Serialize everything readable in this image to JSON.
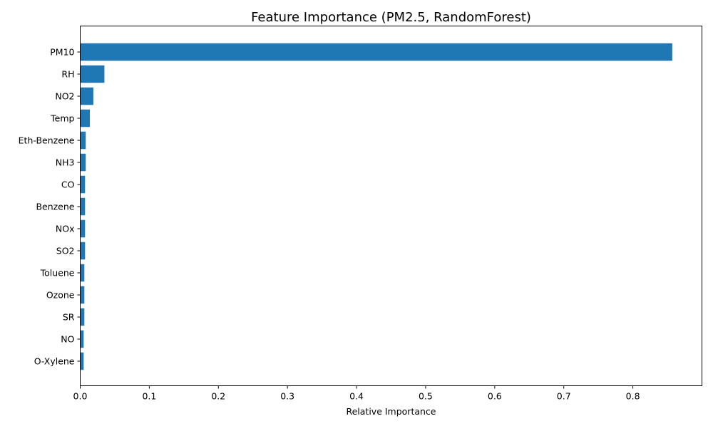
{
  "chart_data": {
    "type": "bar",
    "orientation": "horizontal",
    "title": "Feature Importance (PM2.5, RandomForest)",
    "xlabel": "Relative Importance",
    "ylabel": "",
    "xlim": [
      0,
      0.9
    ],
    "xticks": [
      0,
      0.1,
      0.2,
      0.3,
      0.4,
      0.5,
      0.6,
      0.7,
      0.8
    ],
    "xtick_labels": [
      "0.0",
      "0.1",
      "0.2",
      "0.3",
      "0.4",
      "0.5",
      "0.6",
      "0.7",
      "0.8"
    ],
    "categories": [
      "PM10",
      "RH",
      "NO2",
      "Temp",
      "Eth-Benzene",
      "NH3",
      "CO",
      "Benzene",
      "NOx",
      "SO2",
      "Toluene",
      "Ozone",
      "SR",
      "NO",
      "O-Xylene"
    ],
    "values": [
      0.857,
      0.035,
      0.019,
      0.014,
      0.008,
      0.008,
      0.007,
      0.007,
      0.007,
      0.007,
      0.006,
      0.006,
      0.006,
      0.005,
      0.005
    ],
    "bar_color": "#1f77b4",
    "grid": false,
    "legend": "none"
  }
}
